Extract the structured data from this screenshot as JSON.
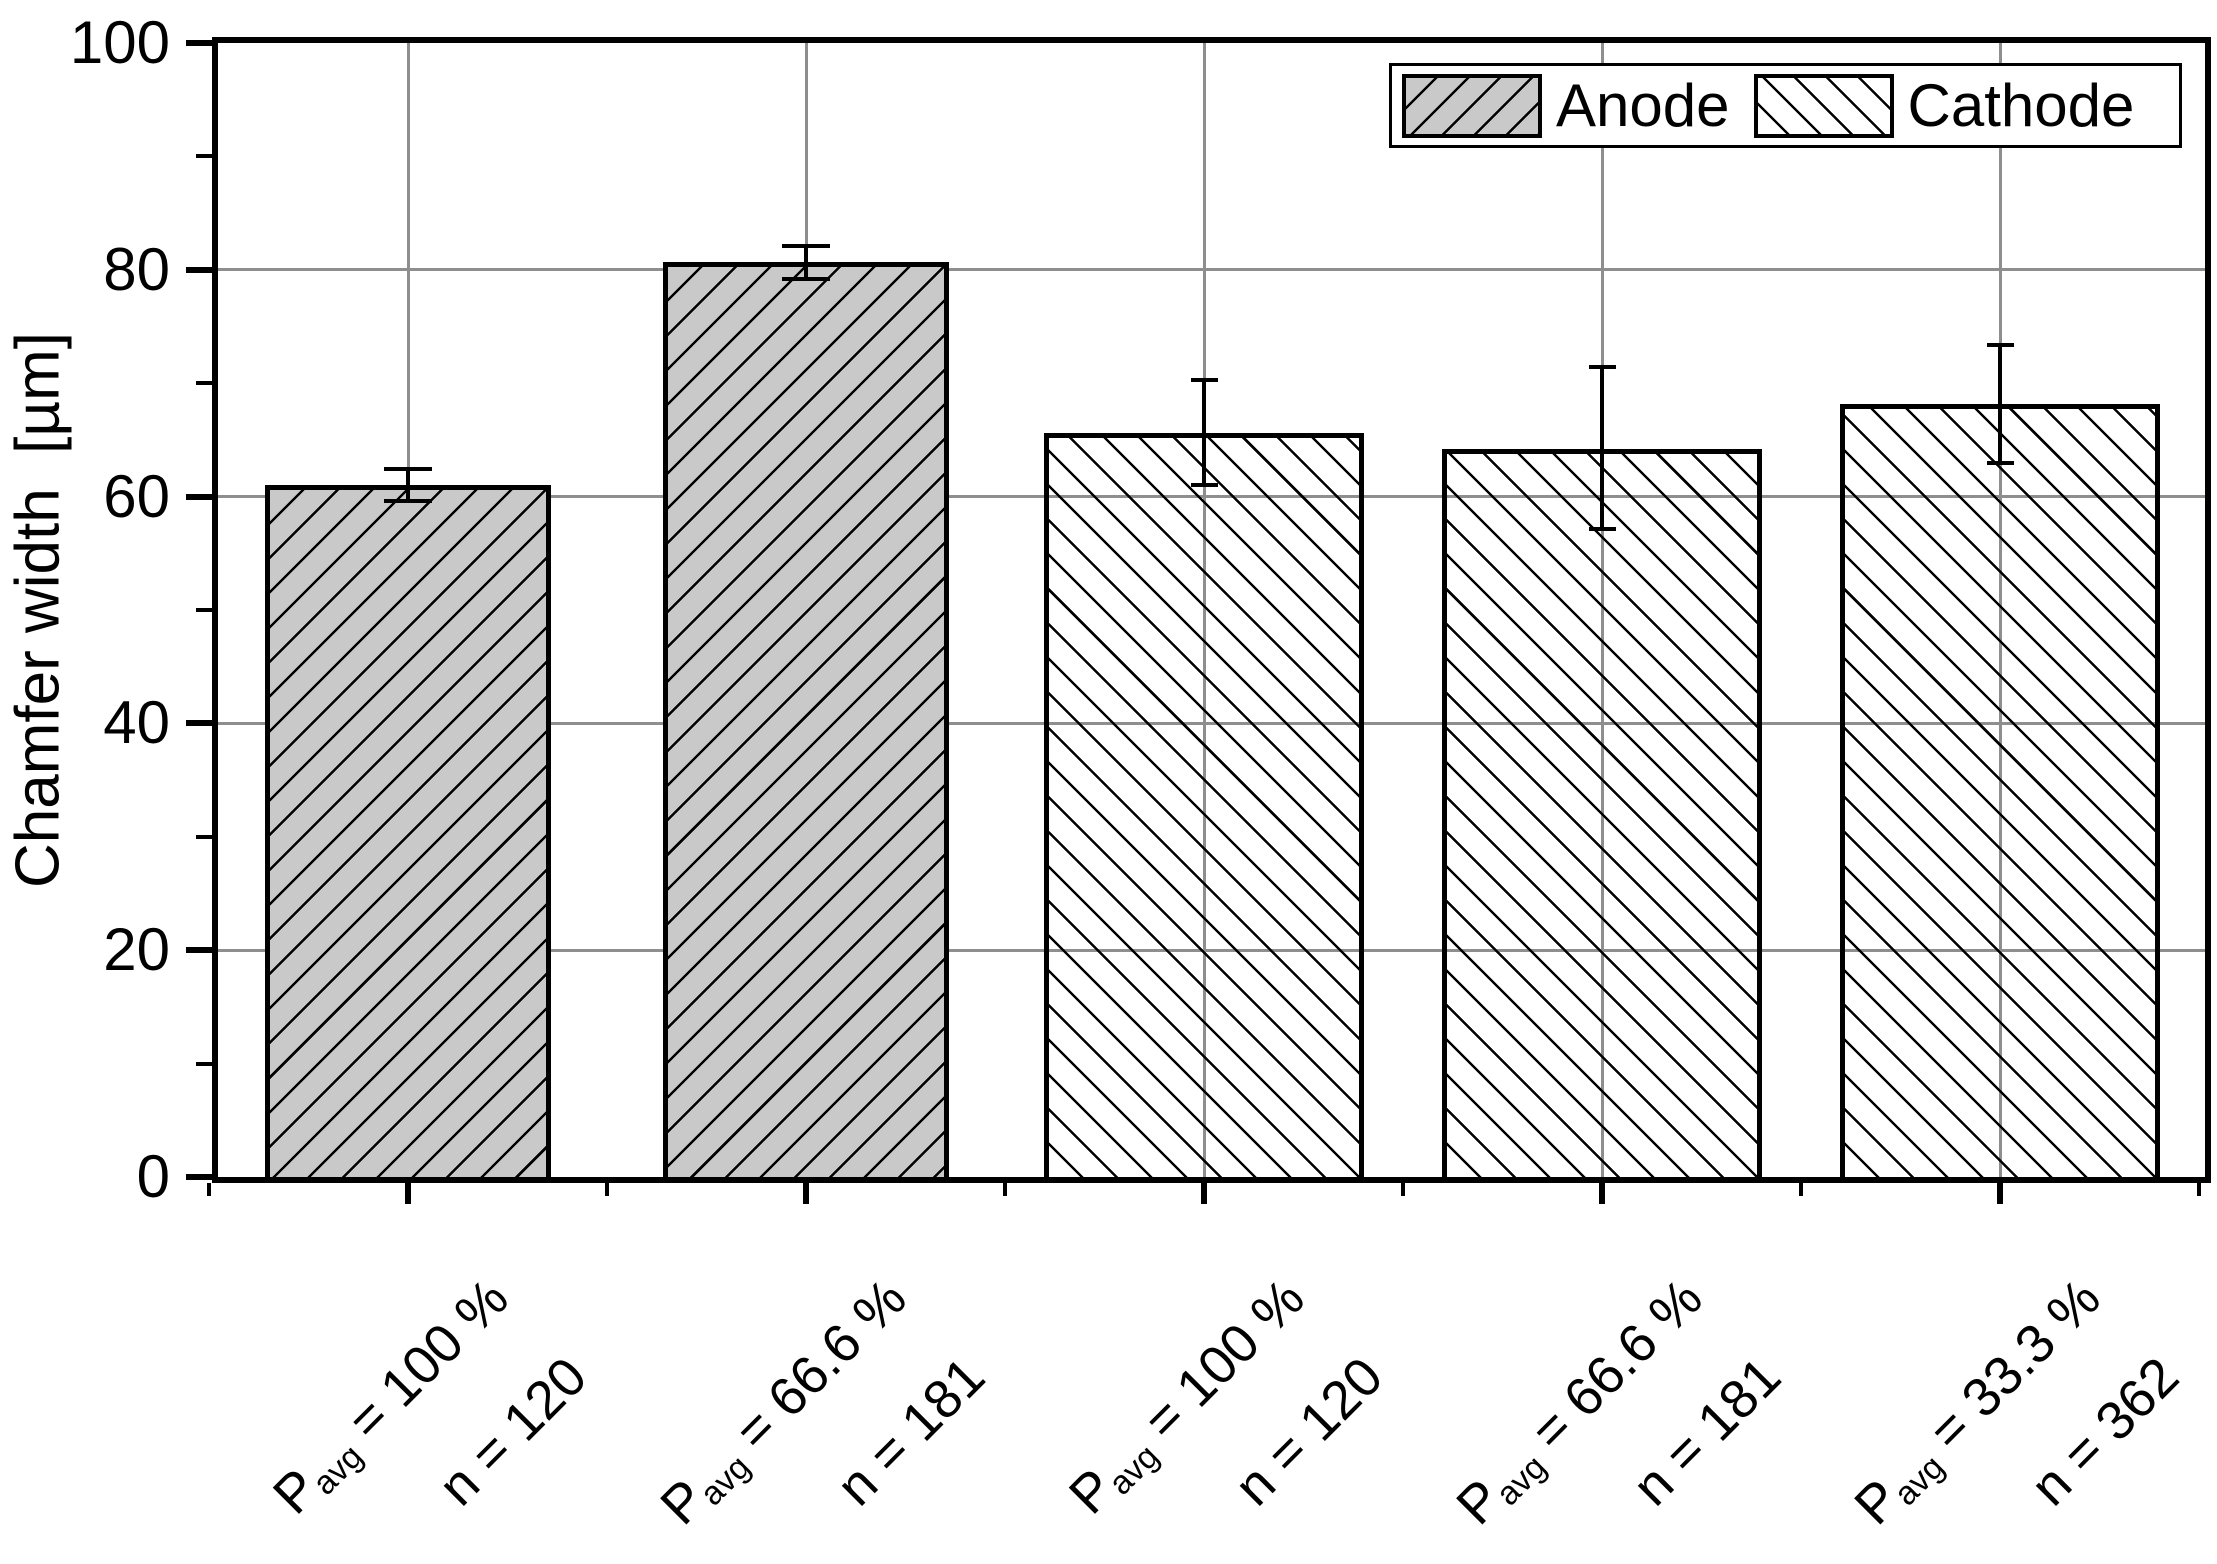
{
  "figure": {
    "y_axis_title": "Chamfer width  [µm]",
    "background": "#ffffff",
    "gridline_color": "#8e8e8e",
    "anode_fill": "#c9c9c9",
    "cathode_fill": "transparent-white",
    "hatch_color": "#000000"
  },
  "chart_data": {
    "type": "bar",
    "title": "",
    "xlabel": "",
    "ylabel": "Chamfer width [µm]",
    "ylim": [
      0,
      100
    ],
    "yticks": [
      0,
      20,
      40,
      60,
      80,
      100
    ],
    "y_minor_ticks": [
      10,
      30,
      50,
      70,
      90
    ],
    "grid": true,
    "legend_position": "top-right-inside",
    "legend": [
      {
        "label": "Anode",
        "style": "anode",
        "hatch": "/",
        "fill": "#c9c9c9"
      },
      {
        "label": "Cathode",
        "style": "cathode",
        "hatch": "\\",
        "fill": "none"
      }
    ],
    "categories": [
      {
        "line1_pre": "P",
        "line1_sub": "avg",
        "line1_rest": " = 100 %",
        "line2": "n = 120"
      },
      {
        "line1_pre": "P",
        "line1_sub": "avg",
        "line1_rest": " = 66.6 %",
        "line2": "n = 181"
      },
      {
        "line1_pre": "P",
        "line1_sub": "avg",
        "line1_rest": " = 100 %",
        "line2": "n = 120"
      },
      {
        "line1_pre": "P",
        "line1_sub": "avg",
        "line1_rest": " = 66.6 %",
        "line2": "n = 181"
      },
      {
        "line1_pre": "P",
        "line1_sub": "avg",
        "line1_rest": " = 33.3 %",
        "line2": "n = 362"
      }
    ],
    "bars": [
      {
        "series": "Anode",
        "value": 61.0,
        "err_low": 59.6,
        "err_high": 62.4
      },
      {
        "series": "Anode",
        "value": 80.7,
        "err_low": 79.2,
        "err_high": 82.1
      },
      {
        "series": "Cathode",
        "value": 65.6,
        "err_low": 61.0,
        "err_high": 70.3
      },
      {
        "series": "Cathode",
        "value": 64.2,
        "err_low": 57.1,
        "err_high": 71.4
      },
      {
        "series": "Cathode",
        "value": 68.2,
        "err_low": 63.0,
        "err_high": 73.4
      }
    ]
  }
}
